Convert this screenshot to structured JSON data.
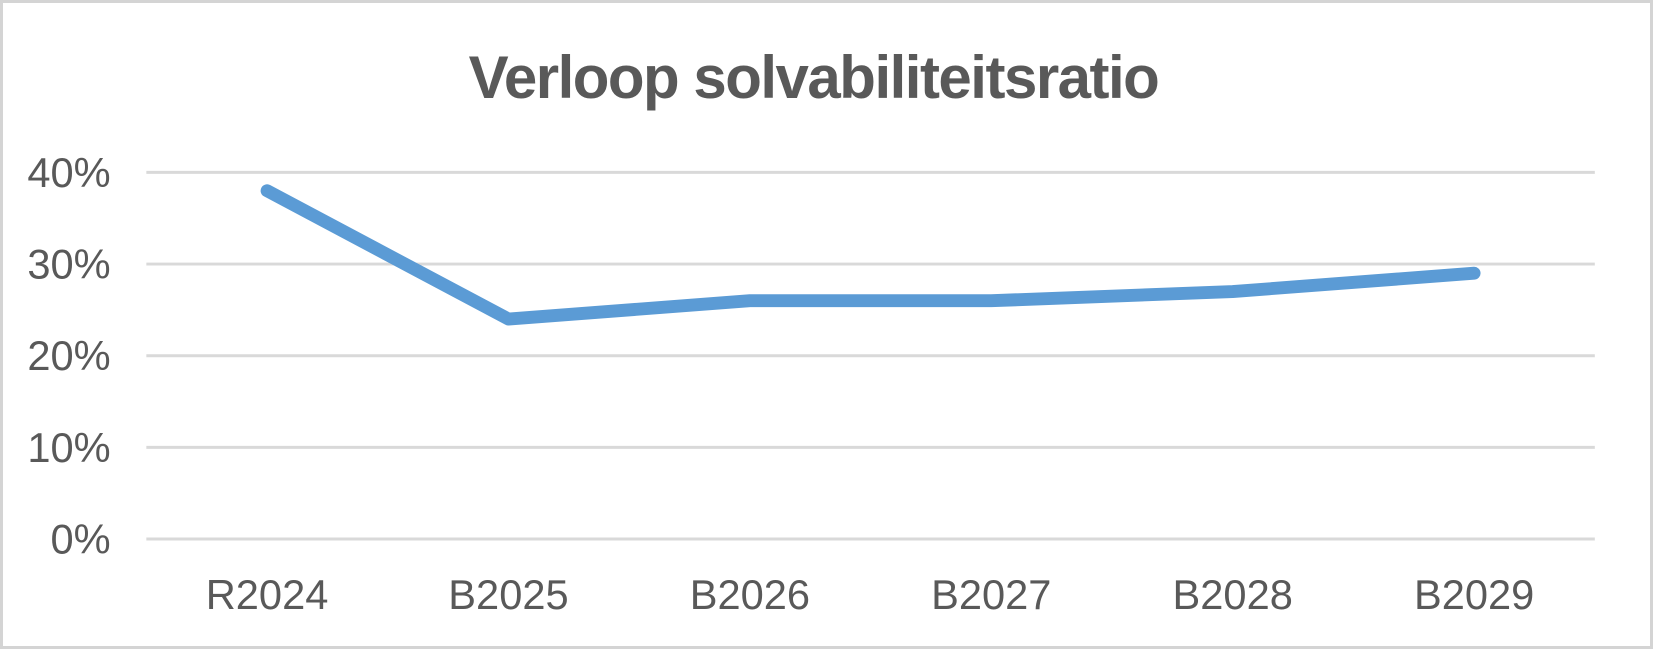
{
  "chart": {
    "title": "Verloop solvabiliteitsratio"
  },
  "chart_data": {
    "type": "line",
    "title": "Verloop solvabiliteitsratio",
    "categories": [
      "R2024",
      "B2025",
      "B2026",
      "B2027",
      "B2028",
      "B2029"
    ],
    "series": [
      {
        "values": [
          38,
          24,
          26,
          26,
          27,
          29
        ]
      }
    ],
    "values_unit": "%",
    "xlabel": "",
    "ylabel": "",
    "ylim": [
      0,
      40
    ],
    "yticks": [
      0,
      10,
      20,
      30,
      40
    ],
    "ytick_labels": [
      "0%",
      "10%",
      "20%",
      "30%",
      "40%"
    ],
    "grid": true,
    "legend_position": "none",
    "colors": {
      "line": "#5B9BD5",
      "gridline": "#D9D9D9",
      "text": "#595959",
      "frame_border": "#D4D4D4",
      "background": "#FFFFFF"
    }
  }
}
